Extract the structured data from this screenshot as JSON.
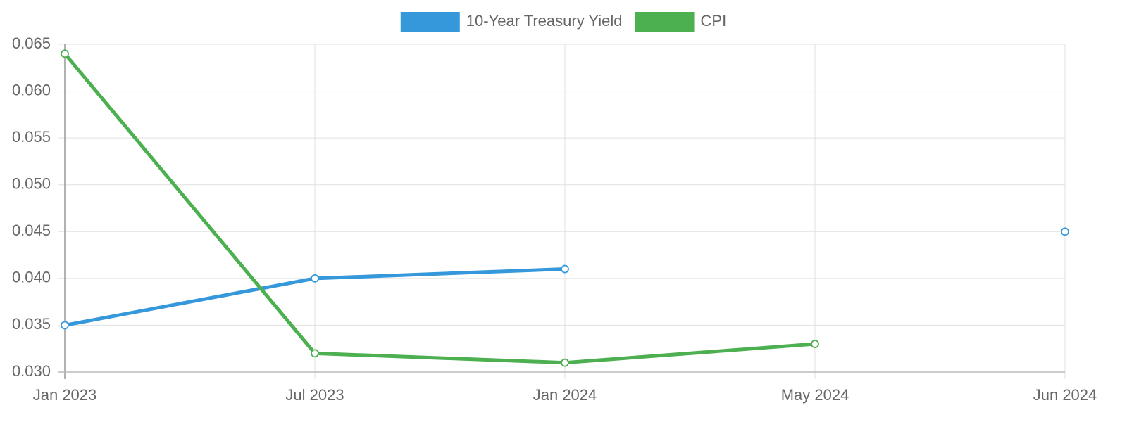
{
  "chart_data": {
    "type": "line",
    "categories": [
      "Jan 2023",
      "Jul 2023",
      "Jan 2024",
      "May 2024",
      "Jun 2024"
    ],
    "series": [
      {
        "name": "10-Year Treasury Yield",
        "color": "#3498db",
        "values": [
          0.035,
          0.04,
          0.041,
          null,
          0.045
        ]
      },
      {
        "name": "CPI",
        "color": "#4caf50",
        "values": [
          0.064,
          0.032,
          0.031,
          0.033,
          null
        ]
      }
    ],
    "ylim": [
      0.03,
      0.065
    ],
    "yticks": [
      {
        "value": 0.03,
        "label": "0.030"
      },
      0.035,
      {
        "value": 0.04,
        "label": "0.040"
      },
      0.045,
      {
        "value": 0.05,
        "label": "0.050"
      },
      0.055,
      {
        "value": 0.06,
        "label": "0.060"
      },
      0.065
    ],
    "grid": true
  }
}
